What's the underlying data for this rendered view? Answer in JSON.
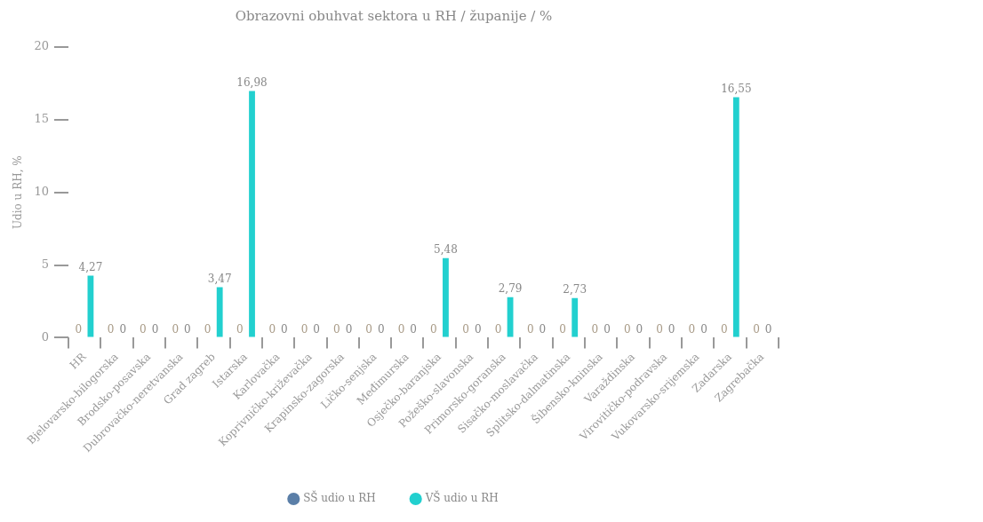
{
  "chart_data": {
    "type": "bar",
    "title": "Obrazovni obuhvat sektora u RH / županije / %",
    "ylabel": "Udio u RH, %",
    "categories": [
      "HR",
      "Bjelovarsko-bilogorska",
      "Brodsko-posavska",
      "Dubrovačko-neretvanska",
      "Grad zagreb",
      "Istarska",
      "Karlovačka",
      "Koprivničko-križevačka",
      "Krapinsko-zagorska",
      "Ličko-senjska",
      "Međimurska",
      "Osječko-baranjska",
      "Požeško-slavonska",
      "Primorsko-goranska",
      "Sisačko-moslavačka",
      "Splitsko-dalmatinska",
      "Šibensko-kninska",
      "Varaždinska",
      "Virovitičko-podravska",
      "Vukovarsko-srijemska",
      "Zadarska",
      "Zagrebačka"
    ],
    "series": [
      {
        "name": "SŠ udio u RH",
        "color": "#5b7fa8",
        "values": [
          0,
          0,
          0,
          0,
          0,
          0,
          0,
          0,
          0,
          0,
          0,
          0,
          0,
          0,
          0,
          0,
          0,
          0,
          0,
          0,
          0,
          0
        ],
        "value_labels": [
          "0",
          "0",
          "0",
          "0",
          "0",
          "0",
          "0",
          "0",
          "0",
          "0",
          "0",
          "0",
          "0",
          "0",
          "0",
          "0",
          "0",
          "0",
          "0",
          "0",
          "0",
          "0"
        ]
      },
      {
        "name": "VŠ udio u RH",
        "color": "#22d0cf",
        "values": [
          4.27,
          0,
          0,
          0,
          3.47,
          16.98,
          0,
          0,
          0,
          0,
          0,
          5.48,
          0,
          2.79,
          0,
          2.73,
          0,
          0,
          0,
          0,
          16.55,
          0
        ],
        "value_labels": [
          "4,27",
          "0",
          "0",
          "0",
          "3,47",
          "16,98",
          "0",
          "0",
          "0",
          "0",
          "0",
          "5,48",
          "0",
          "2,79",
          "0",
          "2,73",
          "0",
          "0",
          "0",
          "0",
          "16,55",
          "0"
        ]
      }
    ],
    "ylim": [
      0,
      20
    ],
    "yticks": [
      0,
      5,
      10,
      15,
      20
    ],
    "grid": false,
    "legend": "bottom"
  }
}
